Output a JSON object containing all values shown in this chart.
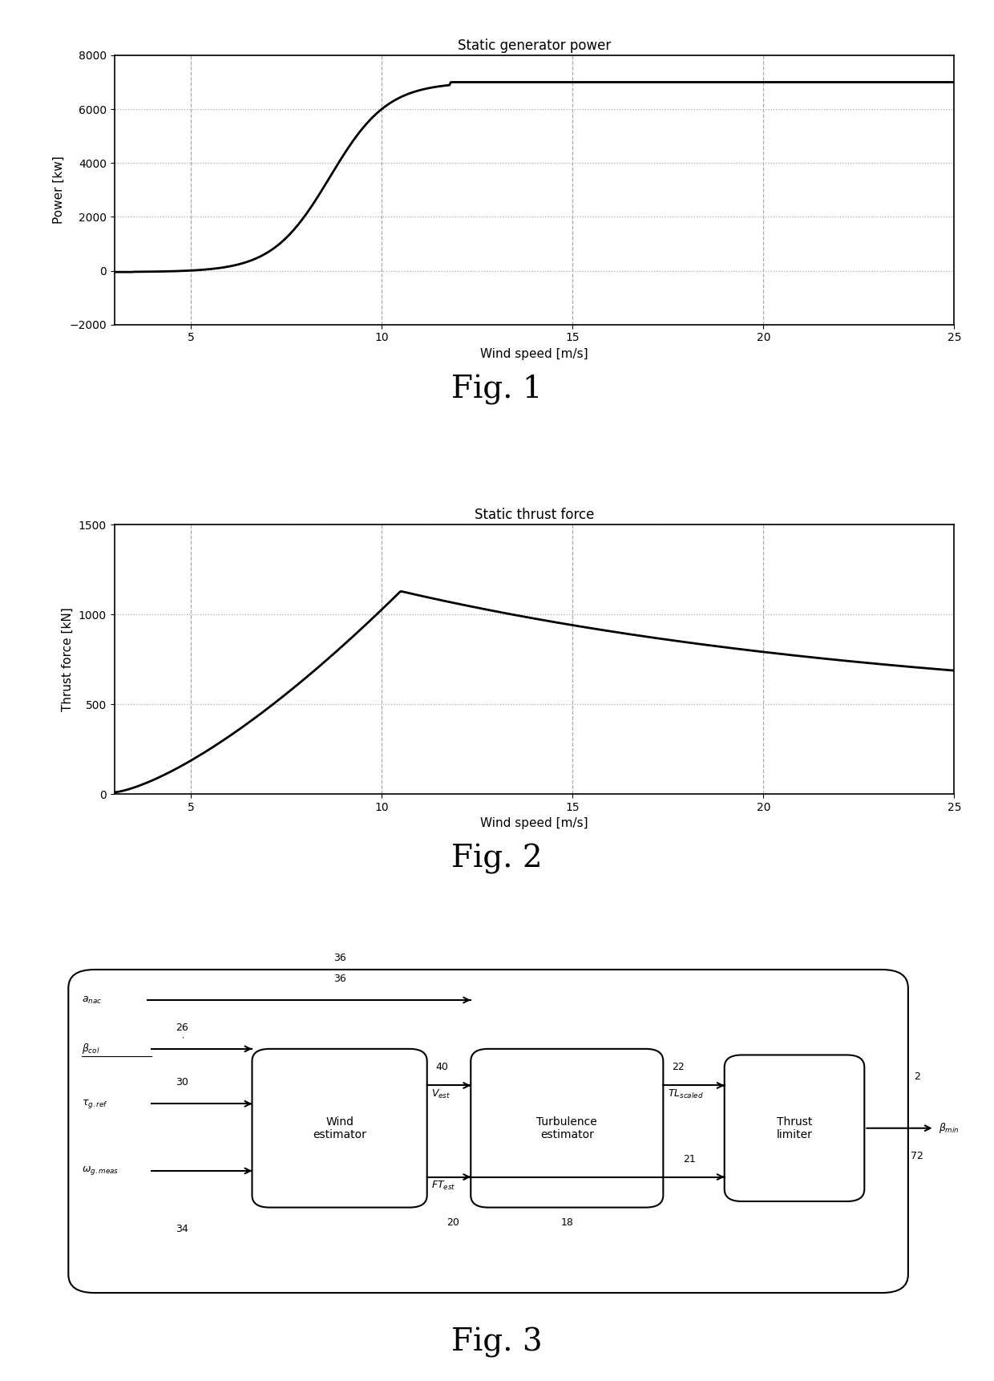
{
  "fig1_title": "Static generator power",
  "fig1_xlabel": "Wind speed [m/s]",
  "fig1_ylabel": "Power [kw]",
  "fig1_xlim": [
    3,
    25
  ],
  "fig1_ylim": [
    -2000,
    8000
  ],
  "fig1_xticks": [
    5,
    10,
    15,
    20,
    25
  ],
  "fig1_yticks": [
    -2000,
    0,
    2000,
    4000,
    6000,
    8000
  ],
  "fig2_title": "Static thrust force",
  "fig2_xlabel": "Wind speed [m/s]",
  "fig2_ylabel": "Thrust force [kN]",
  "fig2_xlim": [
    3,
    25
  ],
  "fig2_ylim": [
    0,
    1500
  ],
  "fig2_xticks": [
    5,
    10,
    15,
    20,
    25
  ],
  "fig2_yticks": [
    0,
    500,
    1000,
    1500
  ],
  "fig_label_fontsize": 28,
  "axis_title_fontsize": 12,
  "axis_label_fontsize": 11,
  "tick_fontsize": 10,
  "line_color": "#000000",
  "grid_color": "#aaaaaa",
  "background": "#ffffff"
}
